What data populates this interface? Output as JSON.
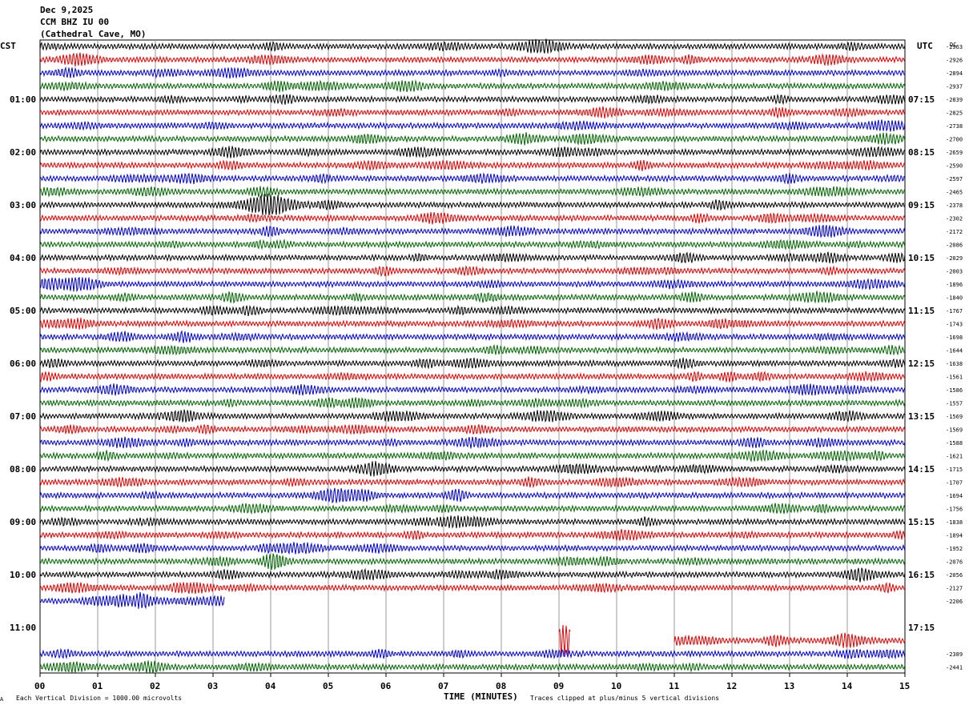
{
  "header": {
    "date": "Dec 9,2025",
    "station": "CCM BHZ IU 00",
    "location": "(Cathedral Cave, MO)"
  },
  "left_zone_label": "CST",
  "right_zone_label": "UTC",
  "dc_label": "DC",
  "footer": {
    "scale_note": "Each Vertical Division = 1000.00 microvolts",
    "xlabel": "TIME (MINUTES)",
    "clip_note": "Traces clipped at plus/minus 5 vertical divisions",
    "corner_mark": "A"
  },
  "colors": {
    "c0": "#000000",
    "c1": "#dd0000",
    "c2": "#0000cc",
    "c3": "#006400",
    "grid": "#9a9a9a"
  },
  "chart_data": {
    "type": "line",
    "xlabel": "TIME (MINUTES)",
    "xlim": [
      0,
      15
    ],
    "x_ticks": [
      "00",
      "01",
      "02",
      "03",
      "04",
      "05",
      "06",
      "07",
      "08",
      "09",
      "10",
      "11",
      "12",
      "13",
      "14",
      "15"
    ],
    "row_count": 48,
    "minutes_per_row": 15,
    "left_hour_labels": [
      {
        "row": 4,
        "label": "01:00"
      },
      {
        "row": 8,
        "label": "02:00"
      },
      {
        "row": 12,
        "label": "03:00"
      },
      {
        "row": 16,
        "label": "04:00"
      },
      {
        "row": 20,
        "label": "05:00"
      },
      {
        "row": 24,
        "label": "06:00"
      },
      {
        "row": 28,
        "label": "07:00"
      },
      {
        "row": 32,
        "label": "08:00"
      },
      {
        "row": 36,
        "label": "09:00"
      },
      {
        "row": 40,
        "label": "10:00"
      },
      {
        "row": 44,
        "label": "11:00"
      }
    ],
    "right_hour_labels": [
      {
        "row": 4,
        "label": "07:15"
      },
      {
        "row": 8,
        "label": "08:15"
      },
      {
        "row": 12,
        "label": "09:15"
      },
      {
        "row": 16,
        "label": "10:15"
      },
      {
        "row": 20,
        "label": "11:15"
      },
      {
        "row": 24,
        "label": "12:15"
      },
      {
        "row": 28,
        "label": "13:15"
      },
      {
        "row": 32,
        "label": "14:15"
      },
      {
        "row": 36,
        "label": "15:15"
      },
      {
        "row": 40,
        "label": "16:15"
      },
      {
        "row": 44,
        "label": "17:15"
      }
    ],
    "traces": [
      {
        "row": 0,
        "start_min": 0,
        "end_min": 15
      },
      {
        "row": 1,
        "start_min": 0,
        "end_min": 15
      },
      {
        "row": 2,
        "start_min": 0,
        "end_min": 15
      },
      {
        "row": 3,
        "start_min": 0,
        "end_min": 15
      },
      {
        "row": 4,
        "start_min": 0,
        "end_min": 15
      },
      {
        "row": 5,
        "start_min": 0,
        "end_min": 15
      },
      {
        "row": 6,
        "start_min": 0,
        "end_min": 15
      },
      {
        "row": 7,
        "start_min": 0,
        "end_min": 15
      },
      {
        "row": 8,
        "start_min": 0,
        "end_min": 15
      },
      {
        "row": 9,
        "start_min": 0,
        "end_min": 15
      },
      {
        "row": 10,
        "start_min": 0,
        "end_min": 15
      },
      {
        "row": 11,
        "start_min": 0,
        "end_min": 15
      },
      {
        "row": 12,
        "start_min": 0,
        "end_min": 15
      },
      {
        "row": 13,
        "start_min": 0,
        "end_min": 15
      },
      {
        "row": 14,
        "start_min": 0,
        "end_min": 15
      },
      {
        "row": 15,
        "start_min": 0,
        "end_min": 15
      },
      {
        "row": 16,
        "start_min": 0,
        "end_min": 15
      },
      {
        "row": 17,
        "start_min": 0,
        "end_min": 15
      },
      {
        "row": 18,
        "start_min": 0,
        "end_min": 15
      },
      {
        "row": 19,
        "start_min": 0,
        "end_min": 15
      },
      {
        "row": 20,
        "start_min": 0,
        "end_min": 15
      },
      {
        "row": 21,
        "start_min": 0,
        "end_min": 15
      },
      {
        "row": 22,
        "start_min": 0,
        "end_min": 15
      },
      {
        "row": 23,
        "start_min": 0,
        "end_min": 15
      },
      {
        "row": 24,
        "start_min": 0,
        "end_min": 15
      },
      {
        "row": 25,
        "start_min": 0,
        "end_min": 15
      },
      {
        "row": 26,
        "start_min": 0,
        "end_min": 15
      },
      {
        "row": 27,
        "start_min": 0,
        "end_min": 15
      },
      {
        "row": 28,
        "start_min": 0,
        "end_min": 15
      },
      {
        "row": 29,
        "start_min": 0,
        "end_min": 15
      },
      {
        "row": 30,
        "start_min": 0,
        "end_min": 15
      },
      {
        "row": 31,
        "start_min": 0,
        "end_min": 15
      },
      {
        "row": 32,
        "start_min": 0,
        "end_min": 15
      },
      {
        "row": 33,
        "start_min": 0,
        "end_min": 15
      },
      {
        "row": 34,
        "start_min": 0,
        "end_min": 15
      },
      {
        "row": 35,
        "start_min": 0,
        "end_min": 15
      },
      {
        "row": 36,
        "start_min": 0,
        "end_min": 15
      },
      {
        "row": 37,
        "start_min": 0,
        "end_min": 15
      },
      {
        "row": 38,
        "start_min": 0,
        "end_min": 15
      },
      {
        "row": 39,
        "start_min": 0,
        "end_min": 15
      },
      {
        "row": 40,
        "start_min": 0,
        "end_min": 15
      },
      {
        "row": 41,
        "start_min": 0,
        "end_min": 15
      },
      {
        "row": 42,
        "start_min": 0,
        "end_min": 3.2
      },
      {
        "row": 45,
        "start_min": 9,
        "end_min": 9.2
      },
      {
        "row": 45,
        "start_min": 11,
        "end_min": 15
      },
      {
        "row": 46,
        "start_min": 0,
        "end_min": 15
      },
      {
        "row": 47,
        "start_min": 0,
        "end_min": 15
      }
    ],
    "dc_values": [
      {
        "row": 0,
        "value": "-2963"
      },
      {
        "row": 1,
        "value": "-2926"
      },
      {
        "row": 2,
        "value": "-2894"
      },
      {
        "row": 3,
        "value": "-2937"
      },
      {
        "row": 4,
        "value": "-2839"
      },
      {
        "row": 5,
        "value": "-2825"
      },
      {
        "row": 6,
        "value": "-2738"
      },
      {
        "row": 7,
        "value": "-2700"
      },
      {
        "row": 8,
        "value": "-2659"
      },
      {
        "row": 9,
        "value": "-2590"
      },
      {
        "row": 10,
        "value": "-2597"
      },
      {
        "row": 11,
        "value": "-2465"
      },
      {
        "row": 12,
        "value": "-2378"
      },
      {
        "row": 13,
        "value": "-2302"
      },
      {
        "row": 14,
        "value": "-2172"
      },
      {
        "row": 15,
        "value": "-2086"
      },
      {
        "row": 16,
        "value": "-2029"
      },
      {
        "row": 17,
        "value": "-2003"
      },
      {
        "row": 18,
        "value": "-1896"
      },
      {
        "row": 19,
        "value": "-1840"
      },
      {
        "row": 20,
        "value": "-1767"
      },
      {
        "row": 21,
        "value": "-1743"
      },
      {
        "row": 22,
        "value": "-1698"
      },
      {
        "row": 23,
        "value": "-1644"
      },
      {
        "row": 24,
        "value": "-1638"
      },
      {
        "row": 25,
        "value": "-1561"
      },
      {
        "row": 26,
        "value": "-1586"
      },
      {
        "row": 27,
        "value": "-1557"
      },
      {
        "row": 28,
        "value": "-1569"
      },
      {
        "row": 29,
        "value": "-1569"
      },
      {
        "row": 30,
        "value": "-1588"
      },
      {
        "row": 31,
        "value": "-1621"
      },
      {
        "row": 32,
        "value": "-1715"
      },
      {
        "row": 33,
        "value": "-1707"
      },
      {
        "row": 34,
        "value": "-1694"
      },
      {
        "row": 35,
        "value": "-1756"
      },
      {
        "row": 36,
        "value": "-1838"
      },
      {
        "row": 37,
        "value": "-1894"
      },
      {
        "row": 38,
        "value": "-1952"
      },
      {
        "row": 39,
        "value": "-2076"
      },
      {
        "row": 40,
        "value": "-2056"
      },
      {
        "row": 41,
        "value": "-2127"
      },
      {
        "row": 42,
        "value": "-2206"
      },
      {
        "row": 46,
        "value": "-2389"
      },
      {
        "row": 47,
        "value": "-2441"
      }
    ]
  }
}
